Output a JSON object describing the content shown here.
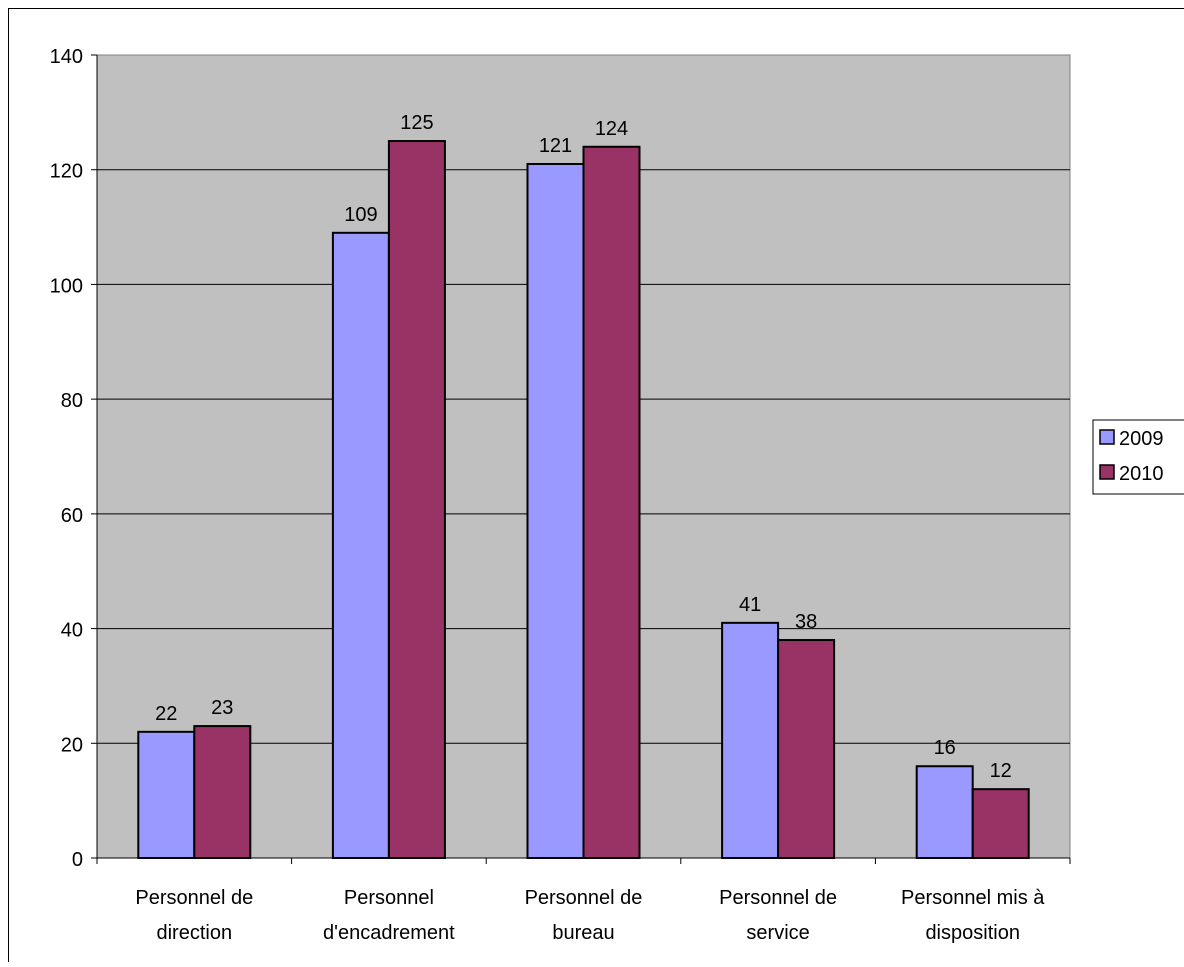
{
  "chart_data": {
    "type": "bar",
    "categories": [
      [
        "Personnel de",
        "direction"
      ],
      [
        "Personnel",
        "d'encadrement"
      ],
      [
        "Personnel de",
        "bureau"
      ],
      [
        "Personnel de",
        "service"
      ],
      [
        "Personnel mis à",
        "disposition"
      ]
    ],
    "series": [
      {
        "name": "2009",
        "values": [
          22,
          109,
          121,
          41,
          16
        ],
        "color": "#9999ff"
      },
      {
        "name": "2010",
        "values": [
          23,
          125,
          124,
          38,
          12
        ],
        "color": "#993366"
      }
    ],
    "ylim": [
      0,
      140
    ],
    "yticks": [
      0,
      20,
      40,
      60,
      80,
      100,
      120,
      140
    ],
    "grid": true,
    "legend_position": "right",
    "plot_background": "#c0c0c0",
    "data_labels": true
  }
}
